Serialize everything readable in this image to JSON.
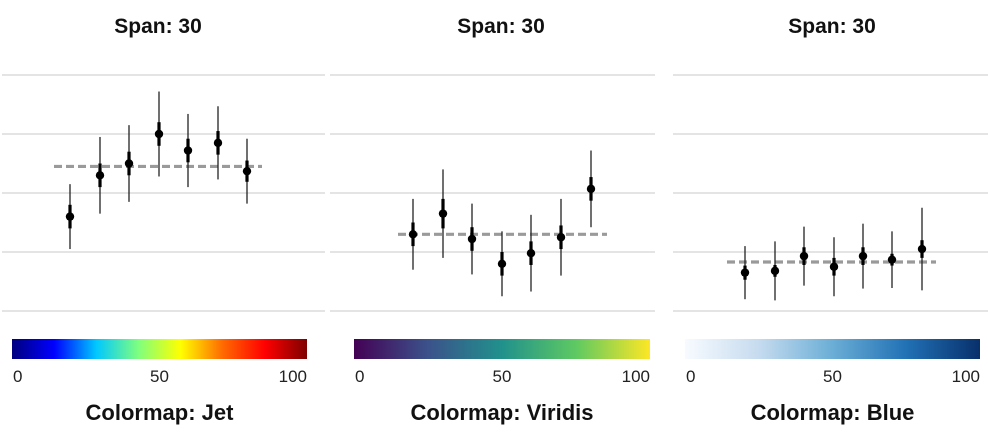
{
  "chart_data": [
    {
      "type": "scatter",
      "title": "Span: 30",
      "ylim": [
        0,
        4
      ],
      "grid": "horizontal",
      "reference_line": 2.45,
      "points": [
        {
          "y": 1.6,
          "err_inner": 0.2,
          "err_outer": 0.55
        },
        {
          "y": 2.3,
          "err_inner": 0.2,
          "err_outer": 0.65
        },
        {
          "y": 2.5,
          "err_inner": 0.2,
          "err_outer": 0.65
        },
        {
          "y": 3.0,
          "err_inner": 0.2,
          "err_outer": 0.72
        },
        {
          "y": 2.72,
          "err_inner": 0.2,
          "err_outer": 0.62
        },
        {
          "y": 2.85,
          "err_inner": 0.2,
          "err_outer": 0.62
        },
        {
          "y": 2.37,
          "err_inner": 0.18,
          "err_outer": 0.55
        }
      ],
      "colorbar": {
        "name": "Jet",
        "ticks": [
          "0",
          "50",
          "100"
        ],
        "label": "Colormap: Jet",
        "colors": [
          "#00007f",
          "#0000ff",
          "#00c8ff",
          "#7fff7f",
          "#ffff00",
          "#ff6a00",
          "#ff0000",
          "#7f0000"
        ]
      }
    },
    {
      "type": "scatter",
      "title": "Span: 30",
      "ylim": [
        0,
        4
      ],
      "grid": "horizontal",
      "reference_line": 1.3,
      "points": [
        {
          "y": 1.3,
          "err_inner": 0.2,
          "err_outer": 0.6
        },
        {
          "y": 1.65,
          "err_inner": 0.25,
          "err_outer": 0.75
        },
        {
          "y": 1.22,
          "err_inner": 0.2,
          "err_outer": 0.6
        },
        {
          "y": 0.8,
          "err_inner": 0.2,
          "err_outer": 0.55
        },
        {
          "y": 0.98,
          "err_inner": 0.2,
          "err_outer": 0.65
        },
        {
          "y": 1.25,
          "err_inner": 0.2,
          "err_outer": 0.65
        },
        {
          "y": 2.07,
          "err_inner": 0.2,
          "err_outer": 0.65
        }
      ],
      "colorbar": {
        "name": "Viridis",
        "ticks": [
          "0",
          "50",
          "100"
        ],
        "label": "Colormap: Viridis",
        "colors": [
          "#440154",
          "#3b528b",
          "#21918c",
          "#5ec962",
          "#fde725"
        ]
      }
    },
    {
      "type": "scatter",
      "title": "Span: 30",
      "ylim": [
        0,
        4
      ],
      "grid": "horizontal",
      "reference_line": 0.83,
      "points": [
        {
          "y": 0.65,
          "err_inner": 0.12,
          "err_outer": 0.45
        },
        {
          "y": 0.68,
          "err_inner": 0.1,
          "err_outer": 0.5
        },
        {
          "y": 0.93,
          "err_inner": 0.15,
          "err_outer": 0.5
        },
        {
          "y": 0.75,
          "err_inner": 0.15,
          "err_outer": 0.5
        },
        {
          "y": 0.93,
          "err_inner": 0.15,
          "err_outer": 0.55
        },
        {
          "y": 0.87,
          "err_inner": 0.1,
          "err_outer": 0.48
        },
        {
          "y": 1.05,
          "err_inner": 0.15,
          "err_outer": 0.7
        }
      ],
      "colorbar": {
        "name": "Blue",
        "ticks": [
          "0",
          "50",
          "100"
        ],
        "label": "Colormap: Blue",
        "colors": [
          "#f7fbff",
          "#c6dbef",
          "#6baed6",
          "#2171b5",
          "#08306b"
        ]
      }
    }
  ]
}
